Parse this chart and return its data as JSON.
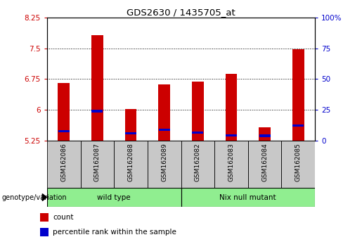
{
  "title": "GDS2630 / 1435705_at",
  "samples": [
    "GSM162086",
    "GSM162087",
    "GSM162088",
    "GSM162089",
    "GSM162082",
    "GSM162083",
    "GSM162084",
    "GSM162085"
  ],
  "count_values": [
    6.65,
    7.82,
    6.02,
    6.62,
    6.68,
    6.87,
    5.58,
    7.47
  ],
  "percentile_values": [
    5.48,
    5.97,
    5.43,
    5.52,
    5.45,
    5.38,
    5.37,
    5.62
  ],
  "base_value": 5.25,
  "ylim": [
    5.25,
    8.25
  ],
  "right_ylim": [
    0,
    100
  ],
  "right_yticks": [
    0,
    25,
    50,
    75,
    100
  ],
  "right_yticklabels": [
    "0",
    "25",
    "50",
    "75",
    "100%"
  ],
  "left_yticks": [
    5.25,
    6.0,
    6.75,
    7.5,
    8.25
  ],
  "left_yticklabels": [
    "5.25",
    "6",
    "6.75",
    "7.5",
    "8.25"
  ],
  "grid_values": [
    6.0,
    6.75,
    7.5
  ],
  "bar_color": "#cc0000",
  "percentile_color": "#0000cc",
  "bar_width": 0.35,
  "group_label": "genotype/variation",
  "legend_items": [
    {
      "label": "count",
      "color": "#cc0000"
    },
    {
      "label": "percentile rank within the sample",
      "color": "#0000cc"
    }
  ],
  "tick_label_color_left": "#cc0000",
  "tick_label_color_right": "#0000cc",
  "xlabel_area_color": "#c8c8c8",
  "group_color": "#90ee90",
  "group1_label": "wild type",
  "group1_samples": [
    0,
    1,
    2,
    3
  ],
  "group2_label": "Nix null mutant",
  "group2_samples": [
    4,
    5,
    6,
    7
  ]
}
